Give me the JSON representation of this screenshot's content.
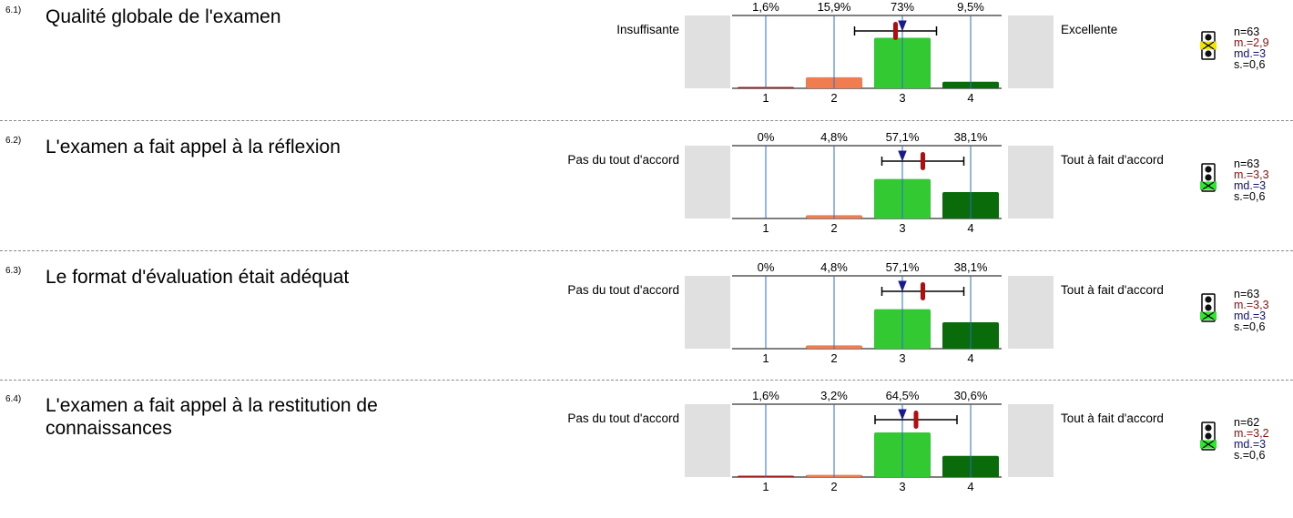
{
  "chart_data": [
    {
      "type": "bar",
      "number": "6.1)",
      "question": "Qualité globale de l'examen",
      "left_label": "Insuffisante",
      "right_label": "Excellente",
      "categories": [
        "1",
        "2",
        "3",
        "4"
      ],
      "percent_labels": [
        "1,6%",
        "15,9%",
        "73%",
        "9,5%"
      ],
      "values": [
        1.6,
        15.9,
        73,
        9.5
      ],
      "bar_colors": [
        "#a11d1d",
        "#f07c50",
        "#33c933",
        "#0a6b0a"
      ],
      "mean": 2.9,
      "median": 3,
      "sd": 0.6,
      "stats": {
        "n": "n=63",
        "m": "m.=2,9",
        "md": "md.=3",
        "s": "s.=0,6"
      },
      "traffic_light": "yellow"
    },
    {
      "type": "bar",
      "number": "6.2)",
      "question": "L'examen a fait appel à la réflexion",
      "left_label": "Pas du tout d'accord",
      "right_label": "Tout à fait d'accord",
      "categories": [
        "1",
        "2",
        "3",
        "4"
      ],
      "percent_labels": [
        "0%",
        "4,8%",
        "57,1%",
        "38,1%"
      ],
      "values": [
        0,
        4.8,
        57.1,
        38.1
      ],
      "bar_colors": [
        "#a11d1d",
        "#f07c50",
        "#33c933",
        "#0a6b0a"
      ],
      "mean": 3.3,
      "median": 3,
      "sd": 0.6,
      "stats": {
        "n": "n=63",
        "m": "m.=3,3",
        "md": "md.=3",
        "s": "s.=0,6"
      },
      "traffic_light": "green"
    },
    {
      "type": "bar",
      "number": "6.3)",
      "question": "Le format d'évaluation était adéquat",
      "left_label": "Pas du tout d'accord",
      "right_label": "Tout à fait d'accord",
      "categories": [
        "1",
        "2",
        "3",
        "4"
      ],
      "percent_labels": [
        "0%",
        "4,8%",
        "57,1%",
        "38,1%"
      ],
      "values": [
        0,
        4.8,
        57.1,
        38.1
      ],
      "bar_colors": [
        "#a11d1d",
        "#f07c50",
        "#33c933",
        "#0a6b0a"
      ],
      "mean": 3.3,
      "median": 3,
      "sd": 0.6,
      "stats": {
        "n": "n=63",
        "m": "m.=3,3",
        "md": "md.=3",
        "s": "s.=0,6"
      },
      "traffic_light": "green"
    },
    {
      "type": "bar",
      "number": "6.4)",
      "question": "L'examen a fait appel à la restitution de connaissances",
      "left_label": "Pas du tout d'accord",
      "right_label": "Tout à fait d'accord",
      "categories": [
        "1",
        "2",
        "3",
        "4"
      ],
      "percent_labels": [
        "1,6%",
        "3,2%",
        "64,5%",
        "30,6%"
      ],
      "values": [
        1.6,
        3.2,
        64.5,
        30.6
      ],
      "bar_colors": [
        "#a11d1d",
        "#f07c50",
        "#33c933",
        "#0a6b0a"
      ],
      "mean": 3.2,
      "median": 3,
      "sd": 0.6,
      "stats": {
        "n": "n=62",
        "m": "m.=3,2",
        "md": "md.=3",
        "s": "s.=0,6"
      },
      "traffic_light": "green"
    }
  ]
}
